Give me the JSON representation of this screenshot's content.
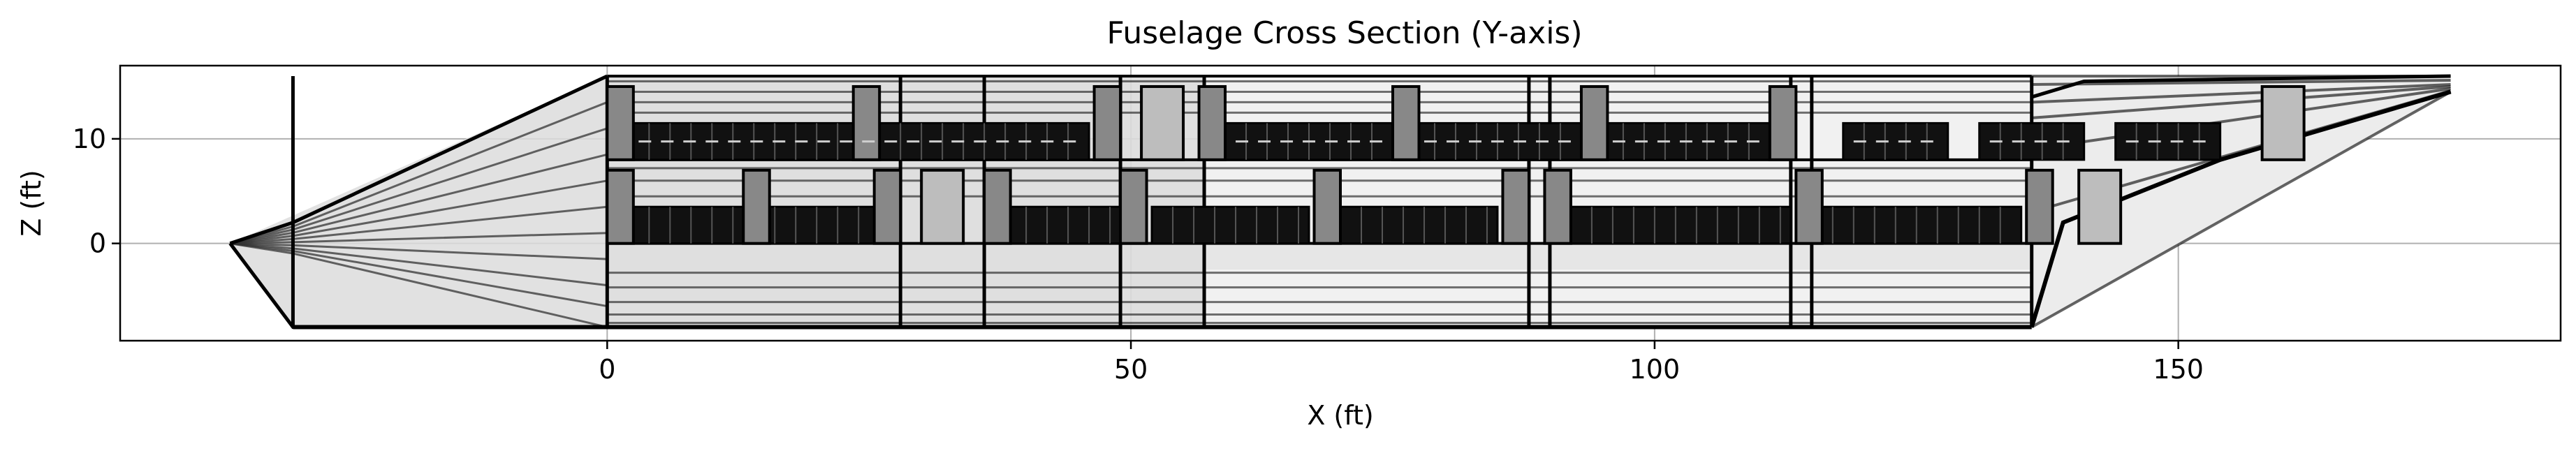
{
  "chart_data": {
    "type": "line",
    "title": "Fuselage Cross Section (Y-axis)",
    "xlabel": "X (ft)",
    "ylabel": "Z (ft)",
    "xlim": [
      -46.5,
      186.5
    ],
    "ylim": [
      -9.3,
      17.0
    ],
    "xticks": [
      0,
      50,
      100,
      150
    ],
    "yticks": [
      0,
      10
    ],
    "grid": true,
    "legend": "none",
    "colors": {
      "outline": "#000000",
      "fill": "#dcdcdc",
      "seat": "#111111",
      "galley": "#888888",
      "grid": "#b0b0b0"
    },
    "outline": {
      "nose_tip": [
        -36,
        0
      ],
      "nose_base_x": -30,
      "cabin_start_x": 0,
      "floor_z": -8,
      "crown_z": 16,
      "tail_start_x": 136,
      "tail_end_x": 176,
      "tail_top_z": 16,
      "tail_bottom_z": 14.5
    },
    "frame_stations": [
      -30,
      0,
      28,
      36,
      49,
      57,
      88,
      90,
      113,
      115,
      136
    ],
    "lower_deck": {
      "z_bottom": 0,
      "z_top": 3.5,
      "seat_blocks": [
        [
          2,
          27
        ],
        [
          38,
          49
        ],
        [
          52,
          67
        ],
        [
          70,
          85
        ],
        [
          92,
          113
        ],
        [
          115,
          135
        ]
      ],
      "galleys": [
        [
          0,
          2.5
        ],
        [
          13,
          15.5
        ],
        [
          25.5,
          28
        ],
        [
          36,
          38.5
        ],
        [
          49,
          51.5
        ],
        [
          67.5,
          70
        ],
        [
          85.5,
          88
        ],
        [
          89.5,
          92
        ],
        [
          113.5,
          116
        ],
        [
          135.5,
          138
        ]
      ],
      "lavatories": [
        [
          30,
          34
        ],
        [
          140.5,
          144.5
        ]
      ]
    },
    "upper_deck": {
      "z_bottom": 8,
      "z_top": 11.5,
      "seat_blocks": [
        [
          2,
          46
        ],
        [
          59,
          75
        ],
        [
          77,
          93
        ],
        [
          95,
          111
        ],
        [
          118,
          128
        ],
        [
          131,
          141
        ],
        [
          144,
          154
        ]
      ],
      "galleys": [
        [
          0,
          2.5
        ],
        [
          23.5,
          26
        ],
        [
          46.5,
          49
        ],
        [
          56.5,
          59
        ],
        [
          75,
          77.5
        ],
        [
          93,
          95.5
        ],
        [
          111,
          113.5
        ]
      ],
      "lavatories": [
        [
          51,
          55
        ],
        [
          158,
          162
        ]
      ],
      "aisle_dashes": true
    }
  }
}
